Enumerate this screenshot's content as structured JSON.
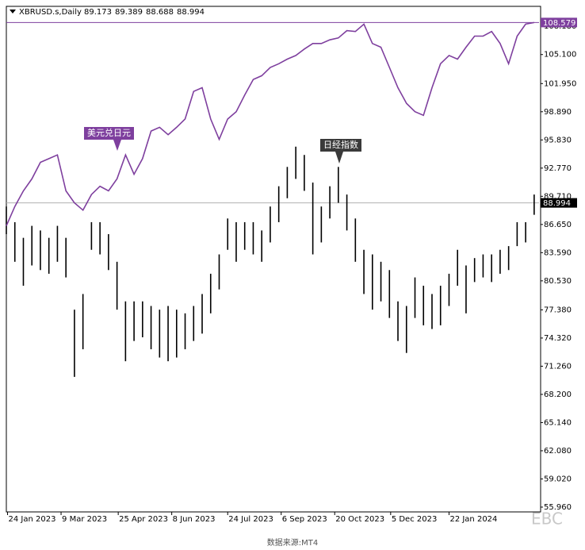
{
  "chart_data": {
    "type": "ohlc",
    "header": "XBRUSD.s,Daily",
    "header_values": [
      89.173,
      89.389,
      88.688,
      88.994
    ],
    "color": "#000000",
    "x": [
      "23 Jan 2023",
      "30 Jan 2023",
      "6 Feb 2023",
      "13 Feb 2023",
      "20 Feb 2023",
      "27 Feb 2023",
      "6 Mar 2023",
      "13 Mar 2023",
      "20 Mar 2023",
      "27 Mar 2023",
      "3 Apr 2023",
      "10 Apr 2023",
      "17 Apr 2023",
      "24 Apr 2023",
      "1 May 2023",
      "8 May 2023",
      "15 May 2023",
      "22 May 2023",
      "29 May 2023",
      "5 Jun 2023",
      "12 Jun 2023",
      "19 Jun 2023",
      "26 Jun 2023",
      "3 Jul 2023",
      "10 Jul 2023",
      "17 Jul 2023",
      "24 Jul 2023",
      "31 Jul 2023",
      "7 Aug 2023",
      "14 Aug 2023",
      "21 Aug 2023",
      "28 Aug 2023",
      "4 Sep 2023",
      "11 Sep 2023",
      "18 Sep 2023",
      "25 Sep 2023",
      "2 Oct 2023",
      "9 Oct 2023",
      "16 Oct 2023",
      "23 Oct 2023",
      "30 Oct 2023",
      "6 Nov 2023",
      "13 Nov 2023",
      "20 Nov 2023",
      "27 Nov 2023",
      "4 Dec 2023",
      "11 Dec 2023",
      "18 Dec 2023",
      "25 Dec 2023",
      "1 Jan 2024",
      "8 Jan 2024",
      "15 Jan 2024",
      "22 Jan 2024",
      "29 Jan 2024",
      "5 Feb 2024",
      "12 Feb 2024",
      "19 Feb 2024",
      "26 Feb 2024",
      "4 Mar 2024",
      "11 Mar 2024",
      "18 Mar 2024",
      "25 Mar 2024",
      "1 Apr 2024"
    ],
    "high": [
      88.6,
      86.9,
      85.2,
      86.5,
      86.0,
      85.2,
      86.5,
      85.2,
      77.4,
      79.1,
      86.9,
      86.9,
      85.6,
      82.6,
      78.3,
      78.3,
      78.3,
      77.8,
      77.4,
      77.8,
      77.4,
      77.0,
      77.8,
      79.1,
      81.3,
      83.4,
      87.3,
      86.9,
      86.9,
      86.9,
      86.0,
      88.6,
      90.8,
      92.9,
      95.1,
      94.2,
      91.2,
      88.6,
      90.8,
      92.9,
      89.9,
      87.3,
      83.9,
      83.4,
      82.6,
      81.7,
      78.3,
      77.8,
      80.9,
      80.0,
      79.1,
      80.0,
      81.3,
      83.9,
      82.2,
      83.0,
      83.4,
      83.4,
      83.9,
      84.3,
      86.9,
      86.9,
      89.9
    ],
    "low": [
      85.6,
      82.6,
      80.0,
      82.2,
      81.7,
      81.3,
      82.6,
      80.9,
      70.1,
      73.1,
      83.9,
      83.4,
      81.7,
      77.4,
      71.8,
      74.0,
      74.4,
      73.1,
      72.2,
      71.8,
      72.2,
      73.1,
      74.0,
      74.8,
      77.0,
      79.6,
      83.9,
      82.6,
      83.9,
      83.4,
      82.6,
      84.7,
      86.9,
      89.5,
      91.6,
      90.3,
      83.4,
      84.7,
      87.3,
      89.0,
      86.0,
      82.6,
      79.1,
      77.4,
      78.3,
      76.5,
      74.0,
      72.7,
      76.5,
      75.7,
      75.3,
      75.7,
      77.8,
      80.0,
      77.0,
      80.4,
      80.9,
      80.4,
      81.3,
      81.7,
      84.3,
      84.7,
      87.7
    ],
    "overlay": {
      "type": "line",
      "color": "#7e3f9e",
      "values": [
        86.5,
        88.6,
        90.3,
        91.6,
        93.4,
        93.8,
        94.2,
        90.3,
        89.0,
        88.2,
        89.9,
        90.8,
        90.3,
        91.6,
        94.2,
        92.1,
        93.8,
        96.8,
        97.2,
        96.4,
        97.2,
        98.1,
        101.1,
        101.5,
        98.1,
        95.9,
        98.1,
        98.9,
        100.7,
        102.4,
        102.8,
        103.7,
        104.1,
        104.6,
        105.0,
        105.7,
        106.3,
        106.3,
        106.7,
        106.9,
        107.7,
        107.6,
        108.4,
        106.3,
        105.9,
        103.7,
        101.5,
        99.8,
        98.9,
        98.5,
        101.5,
        104.1,
        105.0,
        104.6,
        105.9,
        107.1,
        107.1,
        107.6,
        106.3,
        104.1,
        107.1,
        108.4,
        108.579
      ]
    },
    "overlay_price": 108.579,
    "price": 88.994,
    "annotations": [
      "美元兑日元",
      "日经指数"
    ],
    "xlim": [
      "23 Jan 2023",
      "5 Apr 2024"
    ],
    "xticks": [
      "24 Jan 2023",
      "9 Mar 2023",
      "25 Apr 2023",
      "8 Jun 2023",
      "24 Jul 2023",
      "6 Sep 2023",
      "20 Oct 2023",
      "5 Dec 2023",
      "22 Jan 2024"
    ],
    "ylim": [
      55.44,
      109.3
    ],
    "yticks": [
      {
        "value": 55.96,
        "label": "55.960"
      },
      {
        "value": 59.02,
        "label": "59.020"
      },
      {
        "value": 62.08,
        "label": "62.080"
      },
      {
        "value": 65.14,
        "label": "65.140"
      },
      {
        "value": 68.2,
        "label": "68.200"
      },
      {
        "value": 71.26,
        "label": "71.260"
      },
      {
        "value": 74.32,
        "label": "74.320"
      },
      {
        "value": 77.38,
        "label": "77.380"
      },
      {
        "value": 80.53,
        "label": "80.530"
      },
      {
        "value": 83.59,
        "label": "83.590"
      },
      {
        "value": 86.65,
        "label": "86.650"
      },
      {
        "value": 89.71,
        "label": "89.710"
      },
      {
        "value": 92.77,
        "label": "92.770"
      },
      {
        "value": 95.83,
        "label": "95.830"
      },
      {
        "value": 98.89,
        "label": "98.890"
      },
      {
        "value": 101.95,
        "label": "101.950"
      },
      {
        "value": 105.1,
        "label": "105.100"
      },
      {
        "value": 108.18,
        "label": "108.180"
      }
    ],
    "grid": false,
    "source": "数据来源:MT4",
    "watermark": "EBC"
  }
}
